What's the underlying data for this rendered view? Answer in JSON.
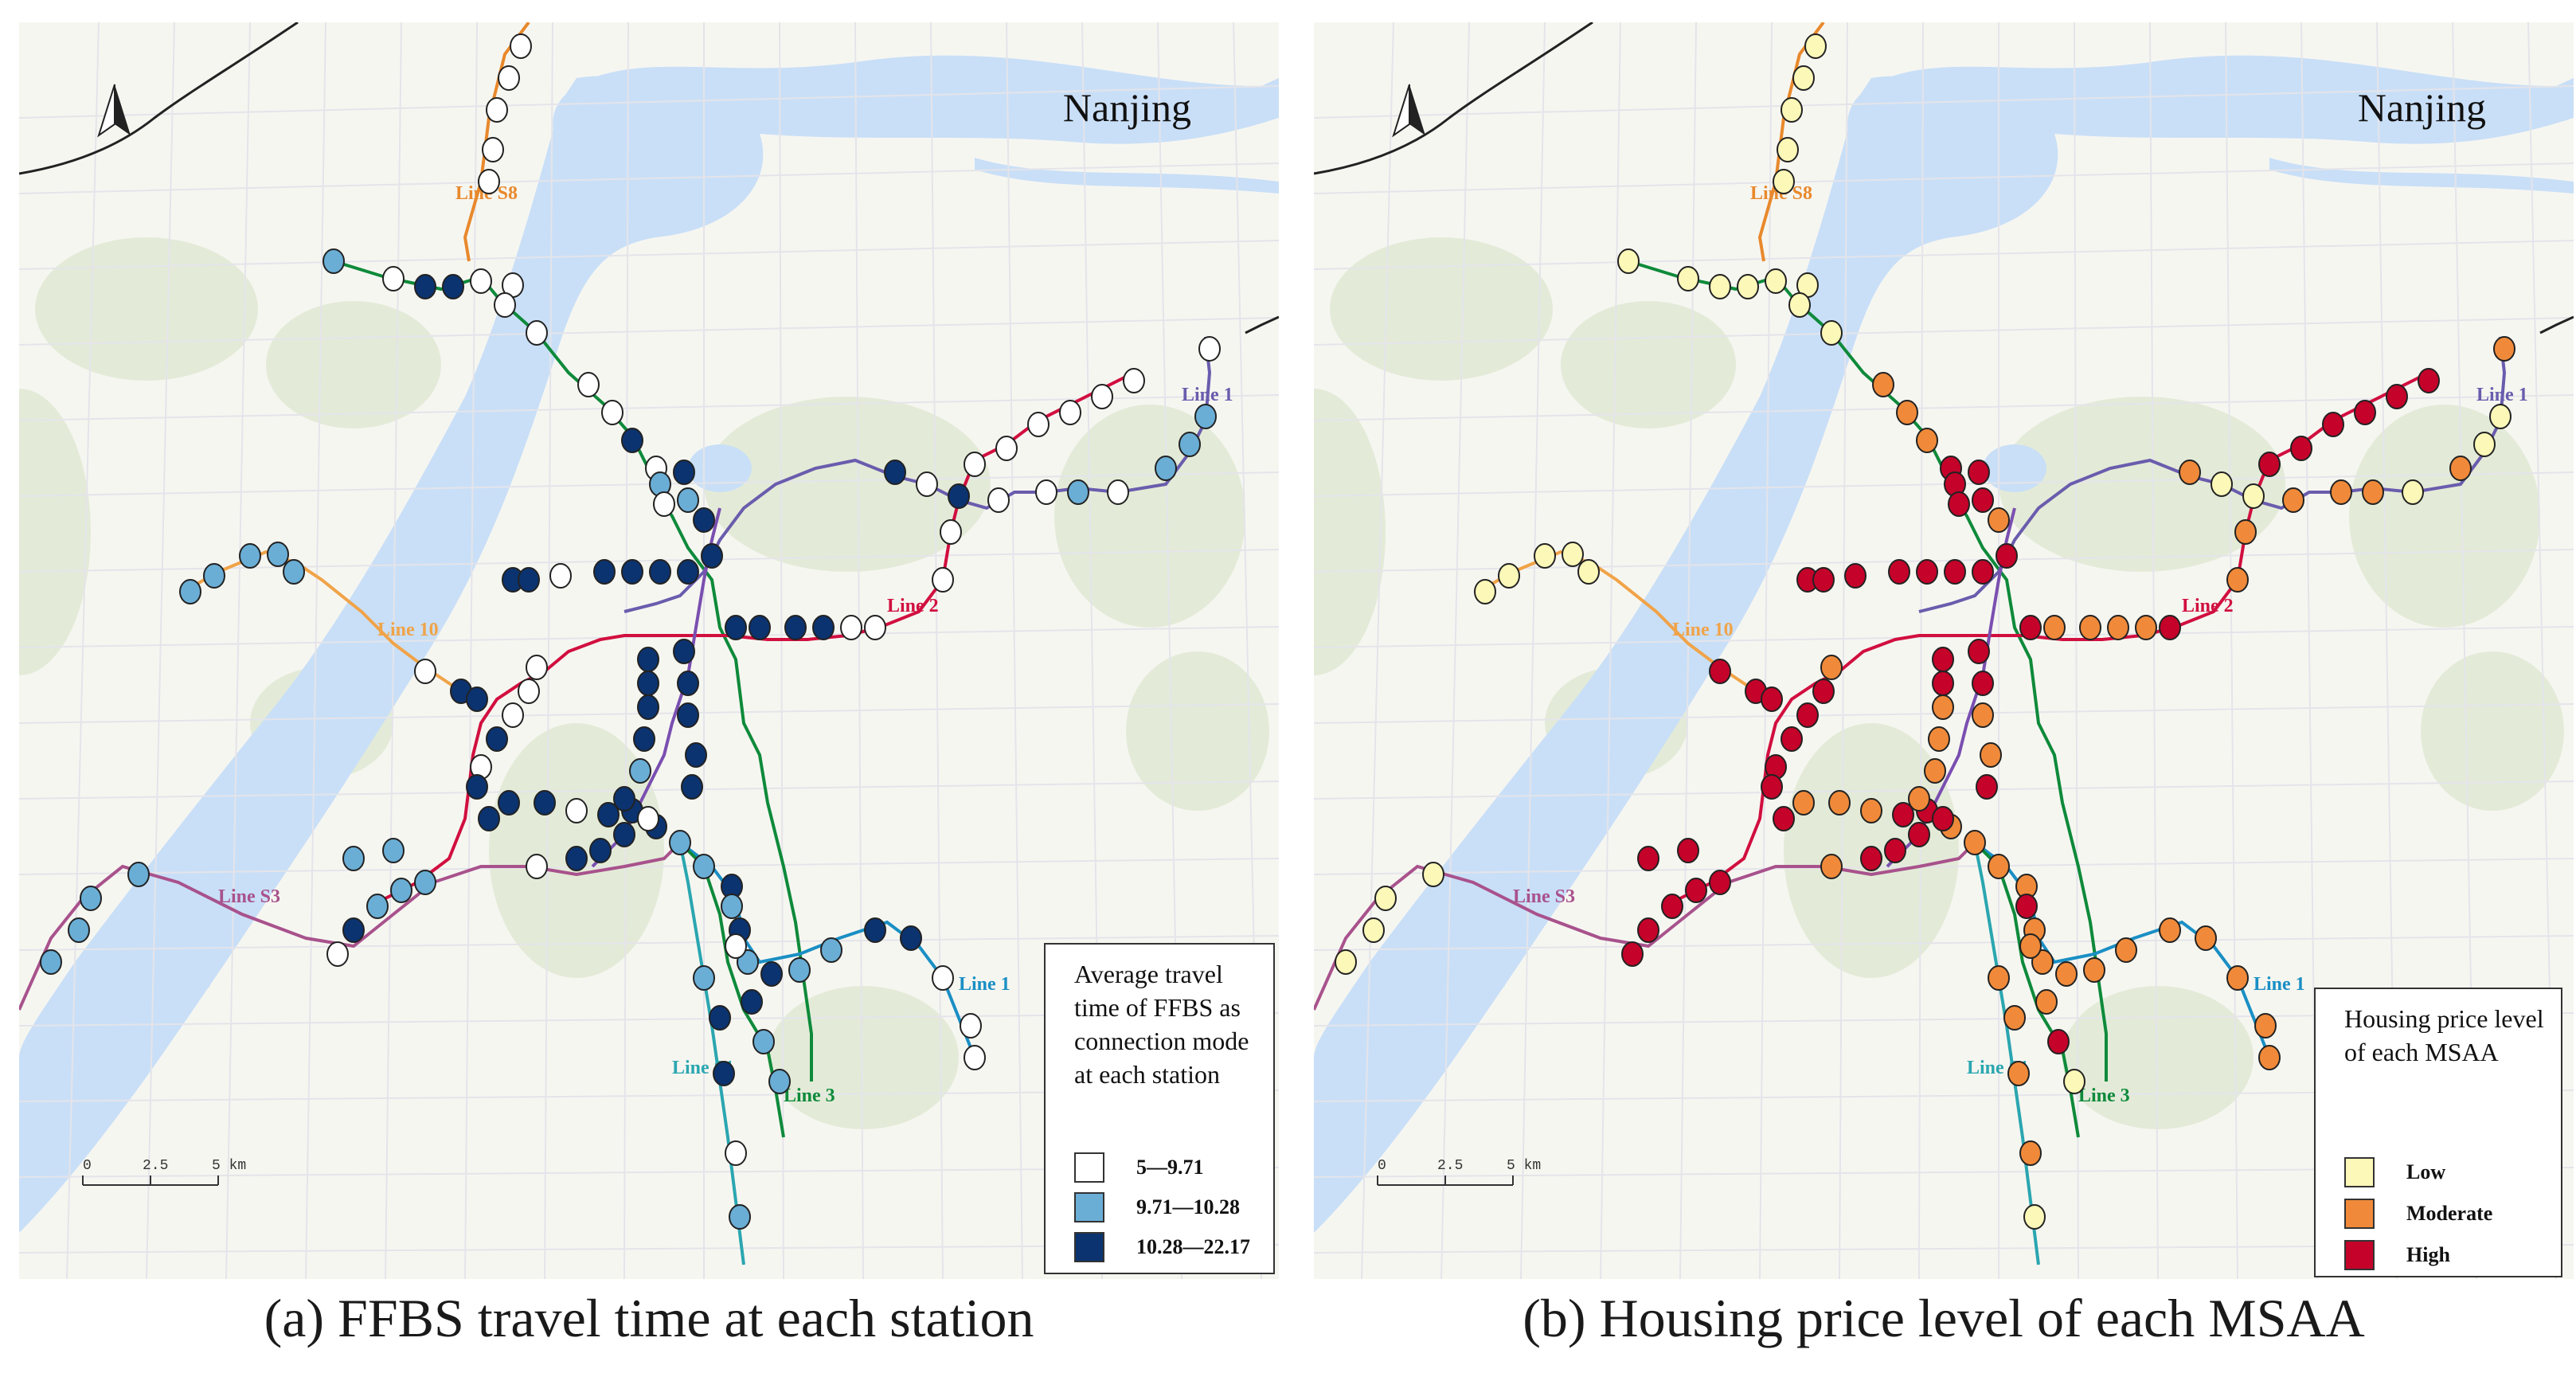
{
  "panels": [
    {
      "city_label": "Nanjing",
      "caption": "(a) FFBS travel time at each station",
      "legend": {
        "title": "Average travel time of FFBS as connection mode at each station",
        "items": [
          {
            "label": "5—9.71",
            "color": "#ffffff"
          },
          {
            "label": "9.71—10.28",
            "color": "#6aaed6"
          },
          {
            "label": "10.28—22.17",
            "color": "#0b3370"
          }
        ]
      }
    },
    {
      "city_label": "Nanjing",
      "caption": "(b) Housing price level of each MSAA",
      "legend": {
        "title": "Housing price level of each MSAA",
        "items": [
          {
            "label": "Low",
            "color": "#fcf8b8"
          },
          {
            "label": "Moderate",
            "color": "#f08a3a"
          },
          {
            "label": "High",
            "color": "#c4022a"
          }
        ]
      }
    }
  ],
  "lines": {
    "s8": {
      "label": "Line S8",
      "color": "#e8892c"
    },
    "1": {
      "label": "Line 1",
      "color": "#6a5cad"
    },
    "2": {
      "label": "Line 2",
      "color": "#d10f3f"
    },
    "3": {
      "label": "Line 3",
      "color": "#0e8a3a"
    },
    "10": {
      "label": "Line 10",
      "color": "#f0a348"
    },
    "s3": {
      "label": "Line S3",
      "color": "#a8528c"
    },
    "s1": {
      "label": "Line S1",
      "color": "#2aa6b0"
    },
    "4": {
      "color": "#7a4fb0"
    },
    "1s": {
      "label": "Line 1",
      "color": "#1a8fc4"
    }
  },
  "scale_bar": {
    "labels": [
      "0",
      "2.5",
      "5 km"
    ]
  },
  "north_arrow": {
    "icon": "north-arrow-icon"
  },
  "map_colors": {
    "water": "#c9dff7",
    "land": "#f6f6f1",
    "green": "#dfe9d3",
    "road": "#e4e4ea"
  }
}
